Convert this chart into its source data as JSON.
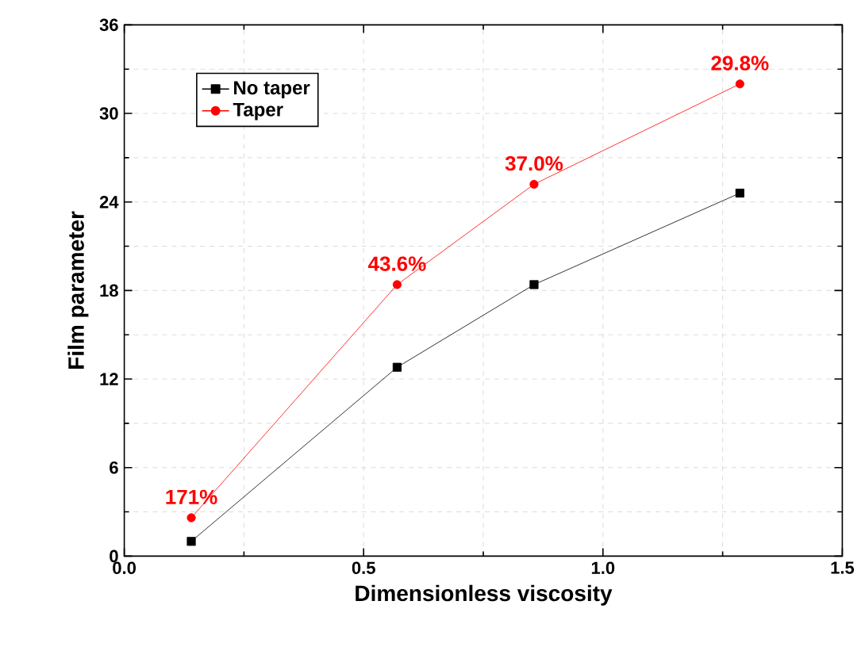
{
  "chart_data": {
    "type": "line",
    "xlabel": "Dimensionless viscosity",
    "ylabel": "Film parameter",
    "x": [
      0.14,
      0.57,
      0.856,
      1.286
    ],
    "series": [
      {
        "name": "No taper",
        "color": "#000000",
        "marker": "square",
        "values": [
          1.0,
          12.8,
          18.4,
          24.6
        ]
      },
      {
        "name": "Taper",
        "color": "#ff0000",
        "marker": "circle",
        "values": [
          2.6,
          18.4,
          25.2,
          32.0
        ]
      }
    ],
    "annotations": [
      {
        "text": "171%",
        "x": 0.14,
        "y": 2.6
      },
      {
        "text": "43.6%",
        "x": 0.57,
        "y": 18.4
      },
      {
        "text": "37.0%",
        "x": 0.856,
        "y": 25.2
      },
      {
        "text": "29.8%",
        "x": 1.286,
        "y": 32.0
      }
    ],
    "xlim": [
      0,
      1.5
    ],
    "xticks": [
      {
        "value": 0,
        "label": "0.0"
      },
      0.5,
      {
        "value": 1,
        "label": "1.0"
      },
      1.5
    ],
    "ylim": [
      0,
      36
    ],
    "yticks": [
      0,
      6,
      12,
      18,
      24,
      30,
      36
    ],
    "grid": true,
    "legend": "top left",
    "line_style": "solid"
  }
}
